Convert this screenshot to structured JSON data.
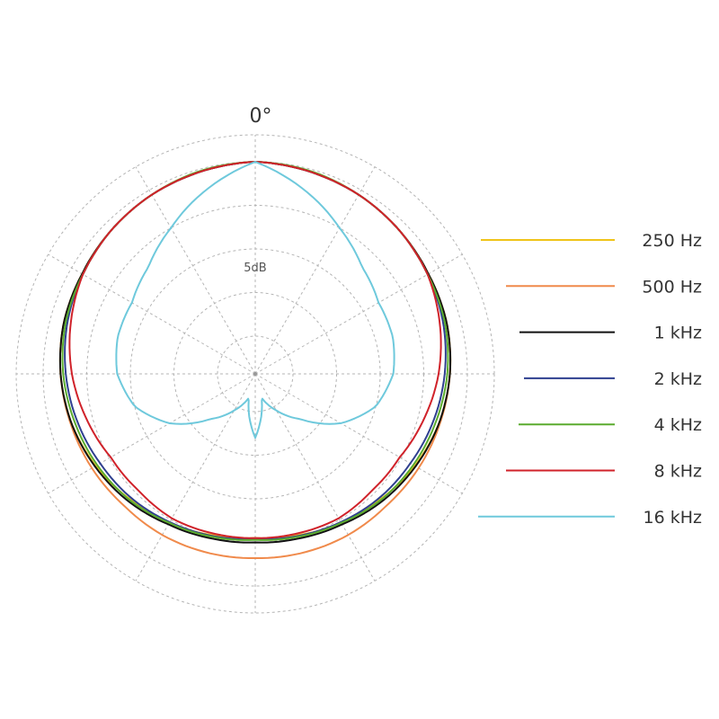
{
  "chart_data": {
    "type": "polar-line",
    "angle_label": "0°",
    "ring_label": "5dB",
    "angle_unit": "degrees",
    "radial_unit": "dB",
    "radial_range": [
      -25,
      0
    ],
    "ring_step": 5,
    "spoke_step_deg": 30,
    "grid": true,
    "legend_position": "right",
    "angles": [
      0,
      15,
      30,
      45,
      60,
      75,
      90,
      105,
      120,
      135,
      150,
      165,
      180
    ],
    "series": [
      {
        "name": "250 Hz",
        "color": "#f0c419",
        "values": [
          0,
          -0.3,
          -0.6,
          -1.0,
          -1.4,
          -1.6,
          -2.0,
          -2.5,
          -3.2,
          -4.0,
          -4.6,
          -5.2,
          -5.5
        ]
      },
      {
        "name": "500 Hz",
        "color": "#f08a4b",
        "values": [
          0,
          -0.3,
          -0.6,
          -1.0,
          -1.4,
          -1.6,
          -2.0,
          -2.4,
          -2.7,
          -3.0,
          -3.0,
          -3.1,
          -3.2
        ]
      },
      {
        "name": "1 kHz",
        "color": "#111111",
        "values": [
          0,
          -0.3,
          -0.6,
          -1.0,
          -1.4,
          -1.6,
          -2.0,
          -2.5,
          -3.1,
          -3.7,
          -4.4,
          -4.8,
          -5.0
        ]
      },
      {
        "name": "2 kHz",
        "color": "#2e3f8f",
        "values": [
          0,
          -0.3,
          -0.6,
          -1.0,
          -1.5,
          -2.0,
          -2.6,
          -3.2,
          -3.8,
          -4.2,
          -4.7,
          -5.1,
          -5.4
        ]
      },
      {
        "name": "4 kHz",
        "color": "#5aab2e",
        "values": [
          0,
          -0.2,
          -0.6,
          -1.0,
          -1.5,
          -1.8,
          -2.3,
          -2.9,
          -3.4,
          -3.9,
          -4.6,
          -5.0,
          -5.3
        ]
      },
      {
        "name": "8 kHz",
        "color": "#d0222a",
        "values": [
          0,
          -0.3,
          -0.6,
          -1.0,
          -1.5,
          -2.4,
          -3.3,
          -4.3,
          -5.2,
          -5.4,
          -5.2,
          -5.4,
          -5.5
        ]
      },
      {
        "name": "16 kHz",
        "color": "#6ec9dc",
        "values": [
          0,
          -2.5,
          -5.0,
          -7.0,
          -8.0,
          -8.0,
          -8.5,
          -10.0,
          -13.0,
          -17.0,
          -19.5,
          -21.5,
          -17.0
        ]
      }
    ]
  }
}
